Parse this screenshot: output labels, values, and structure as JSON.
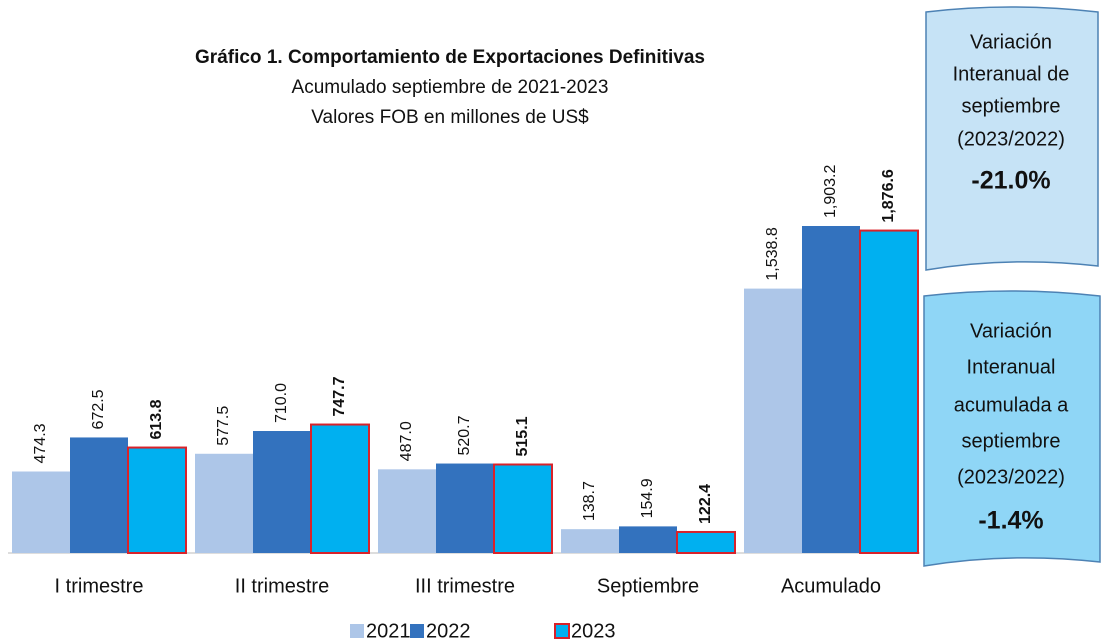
{
  "chart_data": {
    "type": "bar",
    "title": "Gráfico 1. Comportamiento de Exportaciones Definitivas",
    "subtitle": [
      "Acumulado septiembre de 2021-2023",
      "Valores FOB en millones de US$"
    ],
    "categories": [
      "I trimestre",
      "II trimestre",
      "III trimestre",
      "Septiembre",
      "Acumulado"
    ],
    "series": [
      {
        "name": "2021",
        "color": "#adc6e8",
        "values": [
          474.3,
          577.5,
          487.0,
          138.7,
          1538.8
        ],
        "value_labels": [
          "474.3",
          "577.5",
          "487.0",
          "138.7",
          "1,538.8"
        ]
      },
      {
        "name": "2022",
        "color": "#3372be",
        "values": [
          672.5,
          710.0,
          520.7,
          154.9,
          1903.2
        ],
        "value_labels": [
          "672.5",
          "710.0",
          "520.7",
          "154.9",
          "1,903.2"
        ]
      },
      {
        "name": "2023",
        "color": "#00b0f0",
        "border": "#d9222a",
        "label_bold": true,
        "values": [
          613.8,
          747.7,
          515.1,
          122.4,
          1876.6
        ],
        "value_labels": [
          "613.8",
          "747.7",
          "515.1",
          "122.4",
          "1,876.6"
        ]
      }
    ],
    "annotations": [
      {
        "lines": [
          "Variación",
          "Interanual de",
          "septiembre",
          "(2023/2022)"
        ],
        "value": "-21.0%"
      },
      {
        "lines": [
          "Variación",
          "Interanual",
          "acumulada a",
          "septiembre",
          "(2023/2022)"
        ],
        "value": "-1.4%"
      }
    ]
  }
}
